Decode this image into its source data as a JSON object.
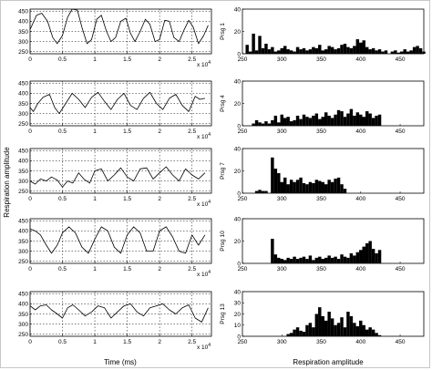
{
  "figure": {
    "left_ylabel": "Respiration amplitude",
    "left_xlabel": "Time (ms)",
    "right_xlabel": "Respiration amplitude"
  },
  "chart_data": [
    {
      "type": "line",
      "panel": "time-1",
      "x_exponent": "x 10",
      "exp_power": "4",
      "xlim": [
        0,
        2.8
      ],
      "ylim": [
        240,
        460
      ],
      "xticks": [
        "0",
        "0.5",
        "1",
        "1.5",
        "2",
        "2.5"
      ],
      "yticks": [
        "250",
        "300",
        "350",
        "400",
        "450"
      ],
      "grid": true,
      "x": [
        0,
        0.05,
        0.1,
        0.18,
        0.27,
        0.35,
        0.42,
        0.5,
        0.58,
        0.65,
        0.73,
        0.8,
        0.88,
        0.95,
        1.03,
        1.1,
        1.18,
        1.25,
        1.32,
        1.4,
        1.48,
        1.55,
        1.62,
        1.7,
        1.78,
        1.85,
        1.93,
        2.0,
        2.08,
        2.15,
        2.22,
        2.3,
        2.38,
        2.45,
        2.52,
        2.6,
        2.68,
        2.75
      ],
      "y": [
        360,
        395,
        430,
        440,
        400,
        320,
        290,
        330,
        420,
        460,
        455,
        370,
        290,
        310,
        410,
        430,
        350,
        300,
        320,
        400,
        415,
        340,
        300,
        350,
        410,
        385,
        300,
        310,
        405,
        400,
        320,
        300,
        360,
        405,
        370,
        290,
        330,
        380
      ]
    },
    {
      "type": "line",
      "panel": "time-2",
      "x_exponent": "x 10",
      "exp_power": "4",
      "xlim": [
        0,
        2.8
      ],
      "ylim": [
        240,
        460
      ],
      "xticks": [
        "0",
        "0.5",
        "1",
        "1.5",
        "2",
        "2.5"
      ],
      "yticks": [
        "250",
        "300",
        "350",
        "400",
        "450"
      ],
      "grid": true,
      "x": [
        0,
        0.05,
        0.12,
        0.2,
        0.3,
        0.38,
        0.45,
        0.55,
        0.65,
        0.75,
        0.85,
        0.95,
        1.05,
        1.15,
        1.25,
        1.35,
        1.45,
        1.55,
        1.65,
        1.75,
        1.85,
        1.95,
        2.05,
        2.15,
        2.25,
        2.35,
        2.45,
        2.55,
        2.62,
        2.7
      ],
      "y": [
        330,
        310,
        350,
        380,
        395,
        330,
        300,
        350,
        400,
        370,
        330,
        380,
        405,
        360,
        320,
        370,
        400,
        340,
        320,
        375,
        405,
        350,
        320,
        375,
        395,
        340,
        310,
        385,
        370,
        375
      ]
    },
    {
      "type": "line",
      "panel": "time-3",
      "x_exponent": "x 10",
      "exp_power": "4",
      "xlim": [
        0,
        2.8
      ],
      "ylim": [
        240,
        460
      ],
      "xticks": [
        "0",
        "0.5",
        "1",
        "1.5",
        "2",
        "2.5"
      ],
      "yticks": [
        "250",
        "300",
        "350",
        "400",
        "450"
      ],
      "grid": true,
      "x": [
        0,
        0.08,
        0.16,
        0.25,
        0.33,
        0.42,
        0.5,
        0.58,
        0.66,
        0.75,
        0.83,
        0.92,
        1.0,
        1.1,
        1.2,
        1.3,
        1.4,
        1.5,
        1.6,
        1.7,
        1.8,
        1.9,
        2.0,
        2.1,
        2.2,
        2.3,
        2.4,
        2.5,
        2.6,
        2.7
      ],
      "y": [
        300,
        285,
        310,
        300,
        320,
        305,
        270,
        300,
        290,
        340,
        310,
        290,
        350,
        360,
        300,
        330,
        365,
        320,
        300,
        360,
        365,
        310,
        340,
        370,
        330,
        300,
        360,
        330,
        310,
        340
      ]
    },
    {
      "type": "line",
      "panel": "time-4",
      "x_exponent": "x 10",
      "exp_power": "4",
      "xlim": [
        0,
        2.8
      ],
      "ylim": [
        240,
        460
      ],
      "xticks": [
        "0",
        "0.5",
        "1",
        "1.5",
        "2",
        "2.5"
      ],
      "yticks": [
        "250",
        "300",
        "350",
        "400",
        "450"
      ],
      "grid": true,
      "x": [
        0,
        0.08,
        0.16,
        0.25,
        0.33,
        0.42,
        0.5,
        0.6,
        0.7,
        0.8,
        0.9,
        1.0,
        1.1,
        1.2,
        1.3,
        1.4,
        1.5,
        1.6,
        1.7,
        1.8,
        1.9,
        2.0,
        2.1,
        2.2,
        2.3,
        2.4,
        2.5,
        2.6,
        2.7
      ],
      "y": [
        410,
        400,
        380,
        330,
        290,
        330,
        390,
        420,
        390,
        320,
        290,
        360,
        420,
        400,
        320,
        290,
        380,
        420,
        390,
        300,
        300,
        400,
        420,
        370,
        300,
        290,
        380,
        330,
        380
      ]
    },
    {
      "type": "line",
      "panel": "time-5",
      "x_exponent": "x 10",
      "exp_power": "4",
      "xlim": [
        0,
        2.8
      ],
      "ylim": [
        240,
        460
      ],
      "xticks": [
        "0",
        "0.5",
        "1",
        "1.5",
        "2",
        "2.5"
      ],
      "yticks": [
        "250",
        "300",
        "350",
        "400",
        "450"
      ],
      "grid": true,
      "x": [
        0,
        0.08,
        0.16,
        0.25,
        0.33,
        0.42,
        0.5,
        0.58,
        0.66,
        0.75,
        0.85,
        0.95,
        1.05,
        1.15,
        1.25,
        1.35,
        1.45,
        1.55,
        1.65,
        1.75,
        1.85,
        1.95,
        2.05,
        2.15,
        2.25,
        2.35,
        2.45,
        2.55,
        2.65,
        2.75
      ],
      "y": [
        390,
        370,
        390,
        395,
        370,
        350,
        330,
        380,
        395,
        370,
        340,
        360,
        390,
        380,
        330,
        360,
        390,
        400,
        360,
        340,
        380,
        390,
        400,
        370,
        350,
        380,
        395,
        330,
        310,
        380
      ]
    },
    {
      "type": "bar",
      "panel": "hist-1",
      "ylabel": "Prsg 1",
      "xlim": [
        250,
        480
      ],
      "ylim": [
        0,
        40
      ],
      "xticks": [
        "250",
        "300",
        "350",
        "400",
        "450"
      ],
      "yticks": [
        "0",
        "20",
        "40"
      ],
      "bin_start": 250,
      "bin_width": 4,
      "values": [
        0,
        8,
        2,
        18,
        3,
        16,
        5,
        9,
        4,
        6,
        2,
        3,
        5,
        7,
        4,
        3,
        2,
        6,
        4,
        5,
        3,
        4,
        6,
        5,
        8,
        3,
        4,
        7,
        6,
        4,
        5,
        8,
        9,
        6,
        5,
        7,
        13,
        10,
        12,
        6,
        4,
        5,
        3,
        4,
        2,
        3,
        0,
        2,
        3,
        1,
        2,
        4,
        2,
        3,
        6,
        7,
        5,
        2
      ]
    },
    {
      "type": "bar",
      "panel": "hist-2",
      "ylabel": "Prsg 4",
      "xlim": [
        250,
        480
      ],
      "ylim": [
        0,
        40
      ],
      "xticks": [
        "250",
        "300",
        "350",
        "400",
        "450"
      ],
      "yticks": [
        "0",
        "20",
        "40"
      ],
      "bin_start": 250,
      "bin_width": 4,
      "values": [
        0,
        0,
        0,
        2,
        5,
        3,
        2,
        4,
        2,
        5,
        9,
        3,
        10,
        7,
        8,
        4,
        5,
        9,
        6,
        10,
        8,
        7,
        9,
        11,
        6,
        8,
        12,
        9,
        7,
        10,
        14,
        13,
        8,
        11,
        15,
        9,
        12,
        10,
        8,
        13,
        11,
        7,
        9,
        10
      ]
    },
    {
      "type": "bar",
      "panel": "hist-3",
      "ylabel": "Prsg 7",
      "xlim": [
        250,
        480
      ],
      "ylim": [
        0,
        40
      ],
      "xticks": [
        "250",
        "300",
        "350",
        "400",
        "450"
      ],
      "yticks": [
        "0",
        "20",
        "40"
      ],
      "bin_start": 250,
      "bin_width": 4,
      "values": [
        0,
        0,
        0,
        0,
        2,
        3,
        2,
        2,
        0,
        32,
        22,
        18,
        10,
        14,
        8,
        12,
        10,
        12,
        14,
        9,
        8,
        10,
        9,
        12,
        11,
        10,
        8,
        12,
        10,
        13,
        14,
        8,
        4,
        0
      ]
    },
    {
      "type": "bar",
      "panel": "hist-4",
      "ylabel": "Prsg 10",
      "xlim": [
        250,
        480
      ],
      "ylim": [
        0,
        40
      ],
      "xticks": [
        "250",
        "300",
        "350",
        "400",
        "450"
      ],
      "yticks": [
        "0",
        "20",
        "40"
      ],
      "bin_start": 250,
      "bin_width": 4,
      "values": [
        0,
        0,
        0,
        0,
        0,
        0,
        0,
        0,
        0,
        22,
        8,
        5,
        4,
        3,
        5,
        4,
        6,
        4,
        5,
        6,
        4,
        7,
        3,
        5,
        6,
        4,
        5,
        7,
        5,
        6,
        4,
        8,
        6,
        5,
        9,
        7,
        10,
        12,
        15,
        18,
        20,
        13,
        9,
        12
      ]
    },
    {
      "type": "bar",
      "panel": "hist-5",
      "ylabel": "Prsg 13",
      "xlim": [
        250,
        480
      ],
      "ylim": [
        0,
        40
      ],
      "xticks": [
        "250",
        "300",
        "350",
        "400",
        "450"
      ],
      "yticks": [
        "0",
        "10",
        "20",
        "30",
        "40"
      ],
      "bin_start": 250,
      "bin_width": 4,
      "values": [
        0,
        0,
        0,
        0,
        0,
        0,
        0,
        0,
        0,
        0,
        0,
        0,
        0,
        0,
        2,
        3,
        6,
        8,
        5,
        4,
        10,
        12,
        8,
        20,
        26,
        18,
        14,
        22,
        16,
        10,
        12,
        17,
        8,
        22,
        18,
        12,
        9,
        14,
        10,
        6,
        8,
        6,
        3,
        1
      ]
    }
  ]
}
